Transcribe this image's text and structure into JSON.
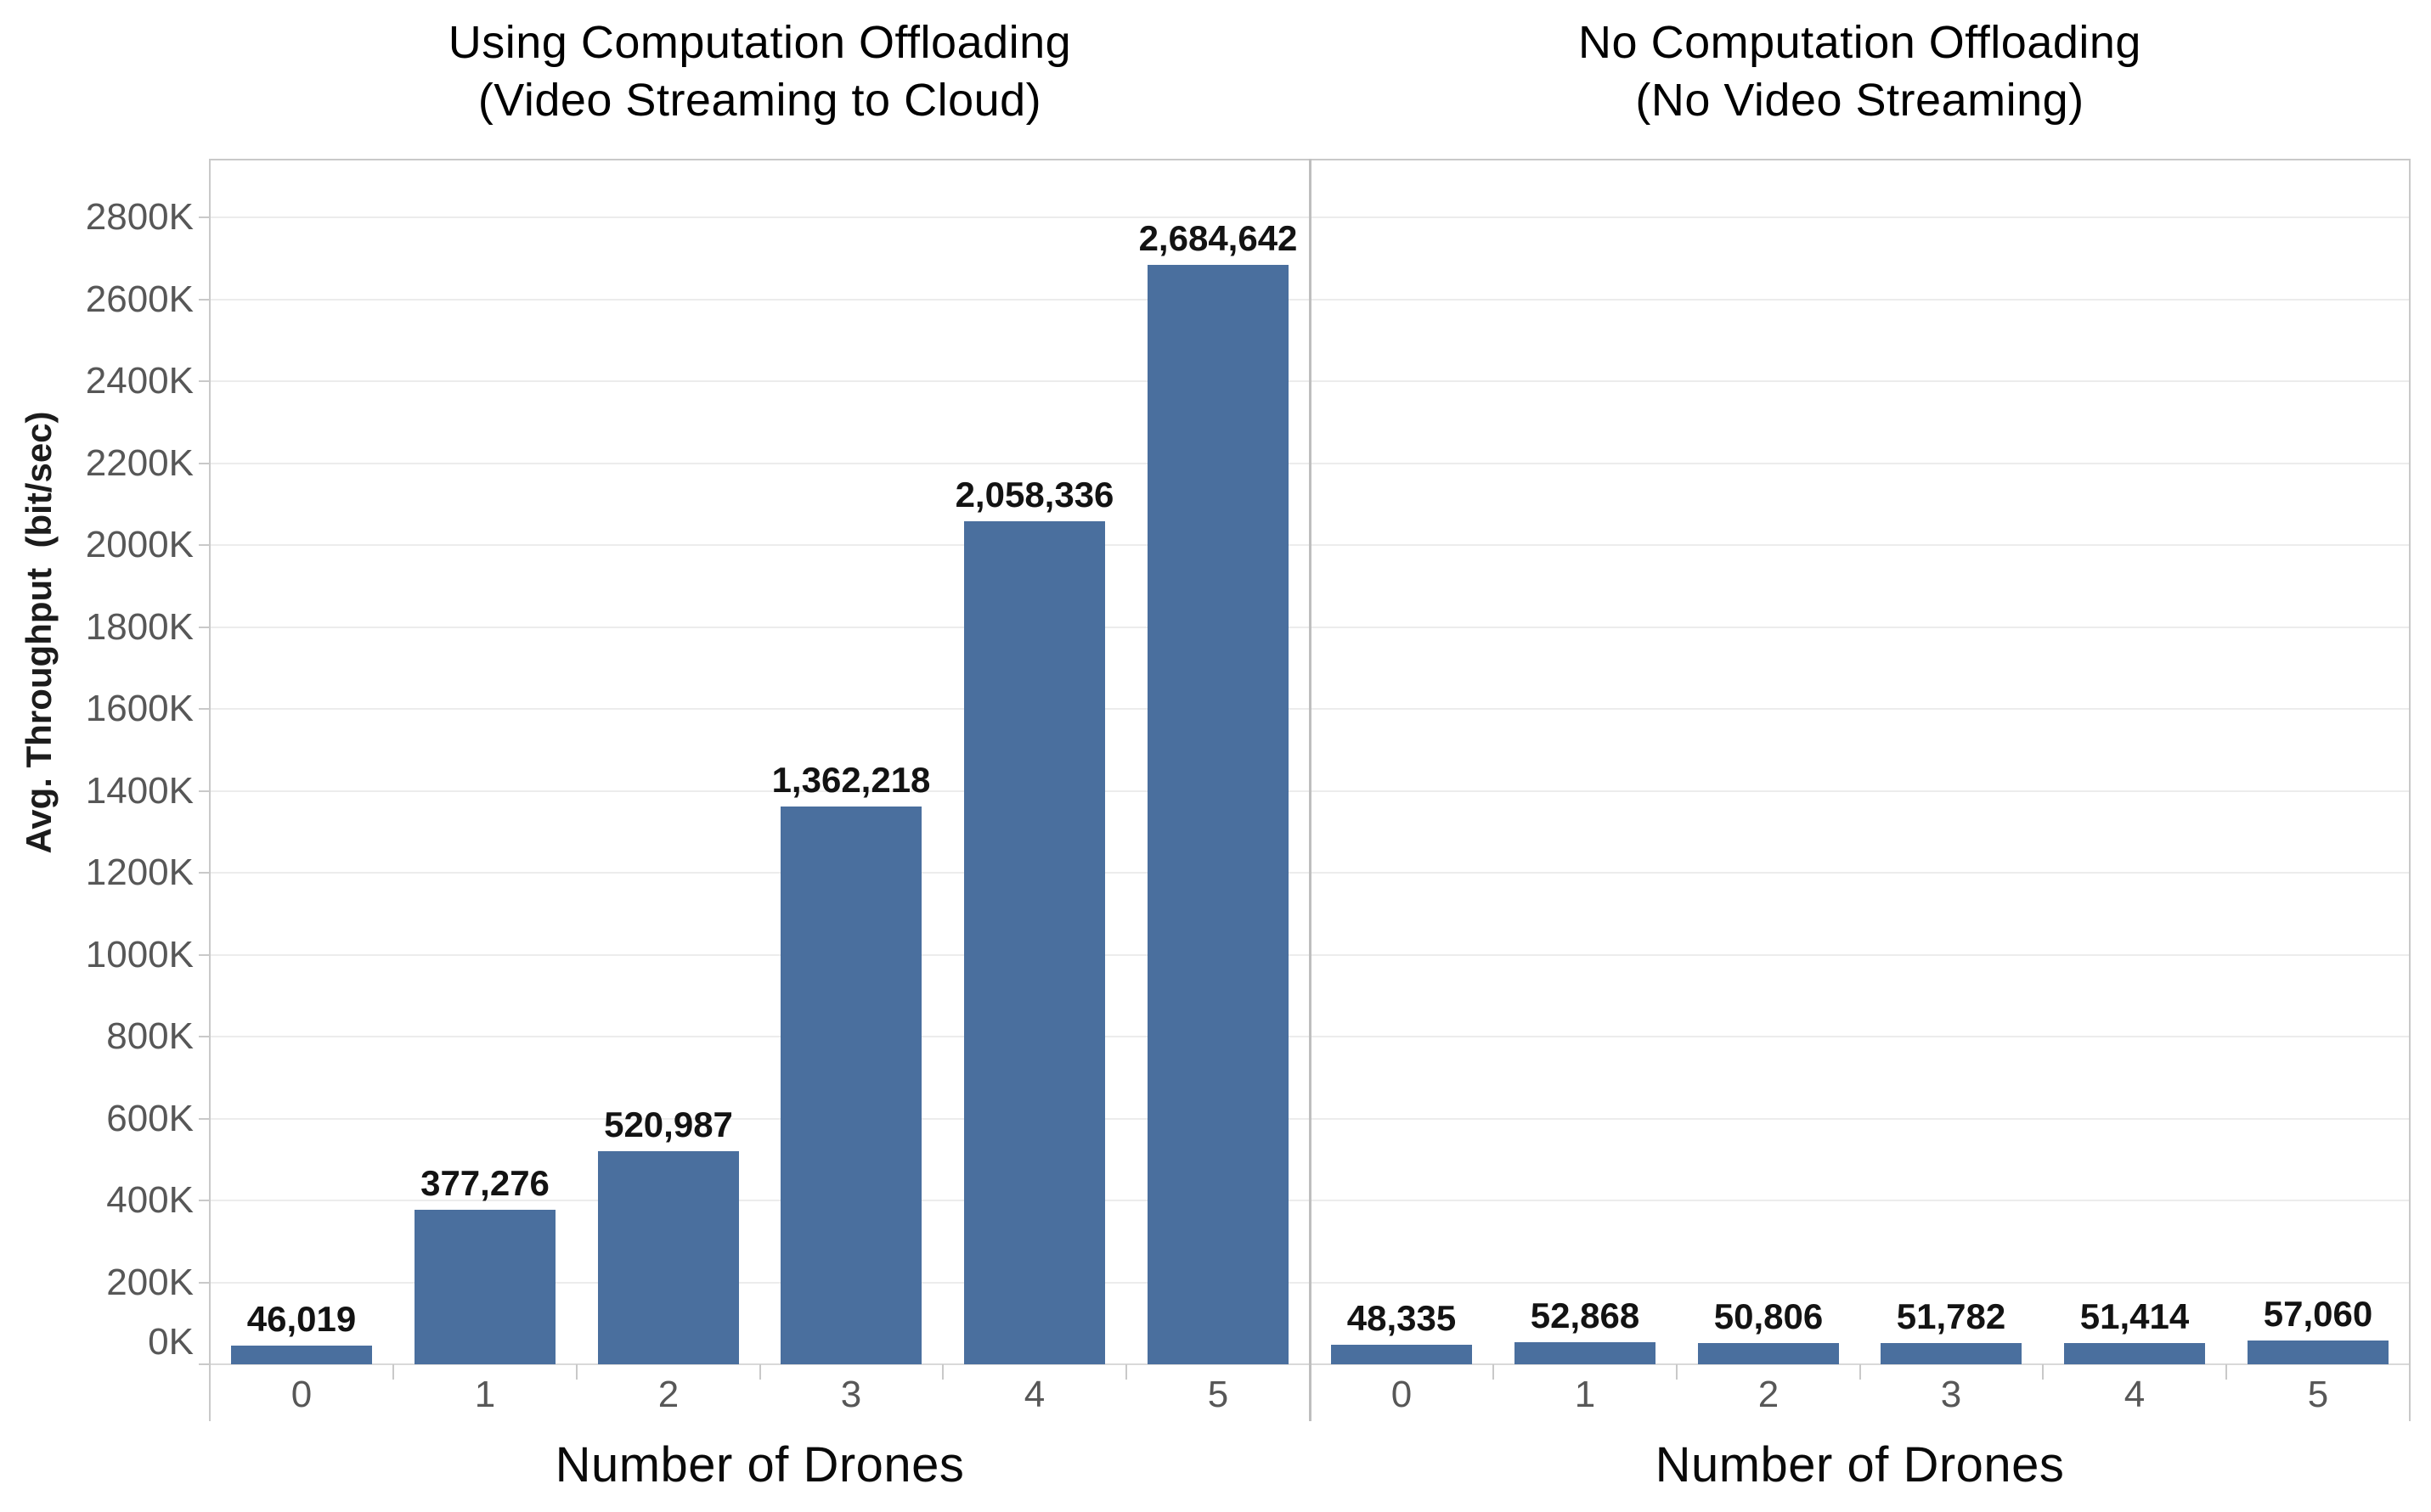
{
  "page": {
    "background": "#ffffff"
  },
  "y_axis": {
    "title": "Avg. Throughput  (bit/sec)",
    "tick_labels": [
      "0K",
      "200K",
      "400K",
      "600K",
      "800K",
      "1000K",
      "1200K",
      "1400K",
      "1600K",
      "1800K",
      "2000K",
      "2200K",
      "2400K",
      "2600K",
      "2800K"
    ]
  },
  "panels": {
    "left": {
      "title_line1": "Using Computation Offloading",
      "title_line2": "(Video Streaming to Cloud)",
      "x_title": "Number of Drones"
    },
    "right": {
      "title_line1": "No Computation Offloading",
      "title_line2": "(No Video Streaming)",
      "x_title": "Number of Drones"
    }
  },
  "colors": {
    "bar": "#4A6F9E",
    "gridline": "#ECECEC",
    "baseline": "#D9D9D9",
    "frame": "#C9C9C9",
    "divider": "#BEBEBE",
    "tick_text": "#575757",
    "value_text": "#131313",
    "title_text": "#000000"
  },
  "chart_data": [
    {
      "type": "bar",
      "panel": "left",
      "title": "Using Computation Offloading (Video Streaming to Cloud)",
      "xlabel": "Number of Drones",
      "ylabel": "Avg. Throughput (bit/sec)",
      "categories": [
        "0",
        "1",
        "2",
        "3",
        "4",
        "5"
      ],
      "values": [
        46019,
        377276,
        520987,
        1362218,
        2058336,
        2684642
      ],
      "value_labels": [
        "46,019",
        "377,276",
        "520,987",
        "1,362,218",
        "2,058,336",
        "2,684,642"
      ],
      "ylim": [
        0,
        2942000
      ],
      "y_tick_step": 200000,
      "y_tick_labels": [
        "0K",
        "200K",
        "400K",
        "600K",
        "800K",
        "1000K",
        "1200K",
        "1400K",
        "1600K",
        "1800K",
        "2000K",
        "2200K",
        "2400K",
        "2600K",
        "2800K"
      ],
      "grid": true,
      "legend": "none",
      "bar_color": "#4A6F9E"
    },
    {
      "type": "bar",
      "panel": "right",
      "title": "No Computation Offloading (No Video Streaming)",
      "xlabel": "Number of Drones",
      "ylabel": "Avg. Throughput (bit/sec)",
      "categories": [
        "0",
        "1",
        "2",
        "3",
        "4",
        "5"
      ],
      "values": [
        48335,
        52868,
        50806,
        51782,
        51414,
        57060
      ],
      "value_labels": [
        "48,335",
        "52,868",
        "50,806",
        "51,782",
        "51,414",
        "57,060"
      ],
      "ylim": [
        0,
        2942000
      ],
      "y_tick_step": 200000,
      "y_tick_labels": [
        "0K",
        "200K",
        "400K",
        "600K",
        "800K",
        "1000K",
        "1200K",
        "1400K",
        "1600K",
        "1800K",
        "2000K",
        "2200K",
        "2400K",
        "2600K",
        "2800K"
      ],
      "grid": true,
      "legend": "none",
      "bar_color": "#4A6F9E"
    }
  ]
}
